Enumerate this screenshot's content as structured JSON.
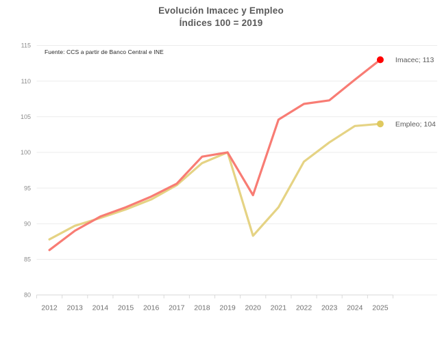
{
  "title": {
    "line1": "Evolución Imacec y Empleo",
    "line2": "Índices 100 = 2019"
  },
  "source_note": "Fuente: CCS a partir de Banco Central e INE",
  "chart_data": {
    "type": "line",
    "title": "Evolución Imacec y Empleo — Índices 100 = 2019",
    "categories": [
      "2012",
      "2013",
      "2014",
      "2015",
      "2016",
      "2017",
      "2018",
      "2019",
      "2020",
      "2021",
      "2022",
      "2023",
      "2024",
      "2025"
    ],
    "series": [
      {
        "name": "Empleo",
        "values": [
          87.8,
          89.7,
          90.8,
          92.0,
          93.4,
          95.4,
          98.5,
          100.0,
          88.3,
          92.3,
          98.7,
          101.4,
          103.7,
          104.0
        ],
        "color": "#E5D384",
        "marker_color": "#DFC95F",
        "end_label": "Empleo; 104"
      },
      {
        "name": "Imacec",
        "values": [
          86.3,
          89.0,
          91.0,
          92.3,
          93.8,
          95.6,
          99.4,
          100.0,
          94.0,
          104.6,
          106.8,
          107.3,
          110.2,
          113.0
        ],
        "color": "#F87C74",
        "marker_color": "#FF0000",
        "end_label": "Imacec; 113"
      }
    ],
    "ylim": [
      80,
      115
    ],
    "yticks": [
      115,
      110,
      105,
      100,
      95,
      90,
      85,
      80
    ],
    "grid": true,
    "legend_position": "end-of-line",
    "gridline_color": "#ECECEC",
    "axis_line_color": "#D9D9D9"
  }
}
